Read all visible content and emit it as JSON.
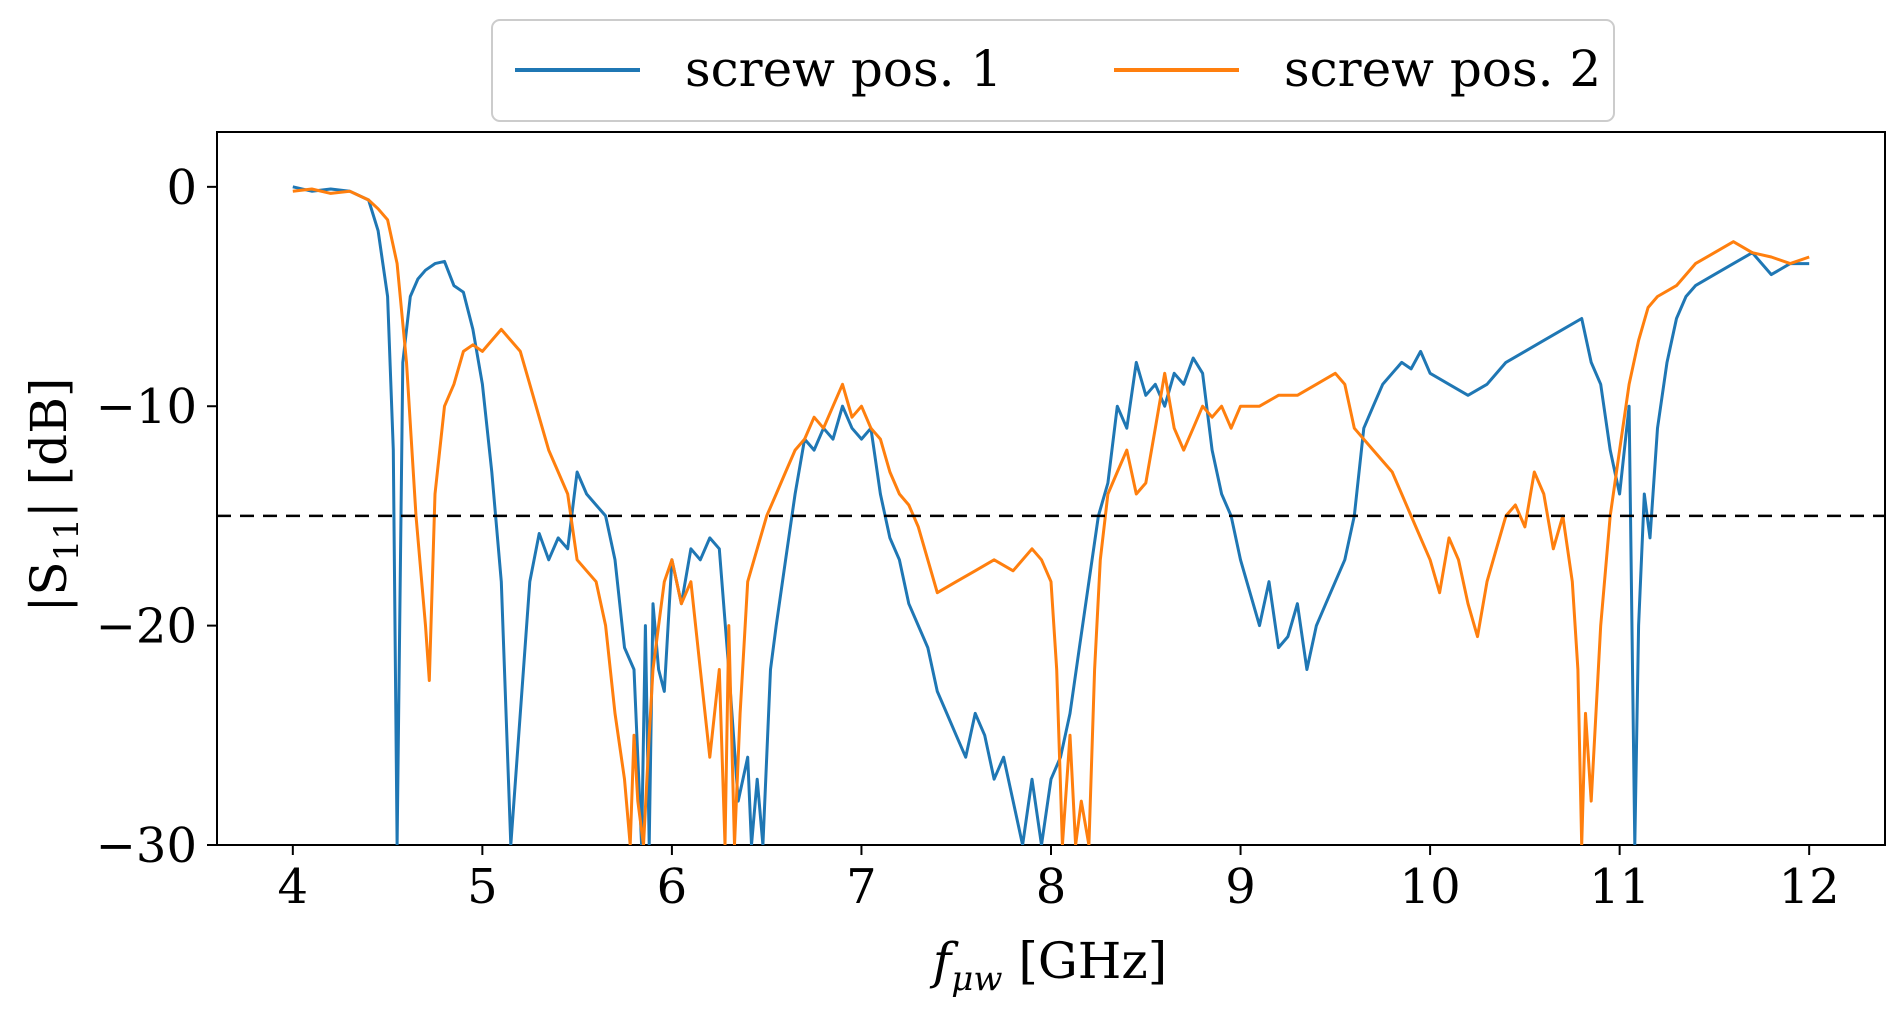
{
  "chart_data": {
    "type": "line",
    "xlabel": "f_{μw} [GHz]",
    "xlabel_main": "f",
    "xlabel_sub": "μw",
    "xlabel_unit": " [GHz]",
    "ylabel": "|S11| [dB]",
    "ylabel_main": "|S",
    "ylabel_sub": "11",
    "ylabel_unit": "| [dB]",
    "xlim": [
      3.6,
      12.4
    ],
    "ylim": [
      -30,
      2.5
    ],
    "xticks": [
      4,
      5,
      6,
      7,
      8,
      9,
      10,
      11,
      12
    ],
    "yticks": [
      0,
      -10,
      -20,
      -30
    ],
    "ytick_labels": [
      "0",
      "−10",
      "−20",
      "−30"
    ],
    "grid": false,
    "legend_position": "top-center-outside",
    "reference_line": {
      "y": -15,
      "style": "dashed",
      "color": "#000000"
    },
    "series": [
      {
        "name": "screw pos. 1",
        "color": "#1f77b4",
        "x": [
          4.0,
          4.1,
          4.2,
          4.3,
          4.4,
          4.45,
          4.5,
          4.53,
          4.55,
          4.58,
          4.62,
          4.66,
          4.7,
          4.75,
          4.8,
          4.85,
          4.9,
          4.95,
          5.0,
          5.05,
          5.1,
          5.15,
          5.2,
          5.25,
          5.3,
          5.35,
          5.4,
          5.45,
          5.5,
          5.55,
          5.6,
          5.65,
          5.7,
          5.75,
          5.8,
          5.84,
          5.86,
          5.88,
          5.9,
          5.93,
          5.96,
          6.0,
          6.05,
          6.1,
          6.15,
          6.2,
          6.25,
          6.3,
          6.35,
          6.4,
          6.42,
          6.45,
          6.48,
          6.52,
          6.55,
          6.6,
          6.65,
          6.7,
          6.75,
          6.8,
          6.85,
          6.9,
          6.95,
          7.0,
          7.05,
          7.1,
          7.15,
          7.2,
          7.25,
          7.3,
          7.35,
          7.4,
          7.45,
          7.5,
          7.55,
          7.6,
          7.65,
          7.7,
          7.75,
          7.8,
          7.85,
          7.9,
          7.95,
          8.0,
          8.05,
          8.1,
          8.15,
          8.2,
          8.25,
          8.3,
          8.35,
          8.4,
          8.45,
          8.5,
          8.55,
          8.6,
          8.65,
          8.7,
          8.75,
          8.8,
          8.85,
          8.9,
          8.95,
          9.0,
          9.05,
          9.1,
          9.15,
          9.2,
          9.25,
          9.3,
          9.35,
          9.4,
          9.45,
          9.5,
          9.55,
          9.6,
          9.65,
          9.7,
          9.75,
          9.8,
          9.85,
          9.9,
          9.95,
          10.0,
          10.1,
          10.2,
          10.3,
          10.4,
          10.5,
          10.6,
          10.7,
          10.8,
          10.85,
          10.9,
          10.95,
          11.0,
          11.05,
          11.08,
          11.1,
          11.13,
          11.16,
          11.2,
          11.25,
          11.3,
          11.35,
          11.4,
          11.5,
          11.6,
          11.7,
          11.8,
          11.9,
          12.0
        ],
        "values": [
          0.0,
          -0.2,
          -0.1,
          -0.2,
          -0.6,
          -2.0,
          -5.0,
          -12.0,
          -30.0,
          -8.0,
          -5.0,
          -4.2,
          -3.8,
          -3.5,
          -3.4,
          -4.5,
          -4.8,
          -6.5,
          -9.0,
          -13.0,
          -18.0,
          -30.0,
          -24.0,
          -18.0,
          -15.8,
          -17.0,
          -16.0,
          -16.5,
          -13.0,
          -14.0,
          -14.5,
          -15.0,
          -17.0,
          -21.0,
          -22.0,
          -30.0,
          -20.0,
          -30.0,
          -19.0,
          -22.0,
          -23.0,
          -17.0,
          -19.0,
          -16.5,
          -17.0,
          -16.0,
          -16.5,
          -22.0,
          -28.0,
          -26.0,
          -30.0,
          -27.0,
          -30.0,
          -22.0,
          -20.0,
          -17.0,
          -14.0,
          -11.5,
          -12.0,
          -11.0,
          -11.5,
          -10.0,
          -11.0,
          -11.5,
          -11.0,
          -14.0,
          -16.0,
          -17.0,
          -19.0,
          -20.0,
          -21.0,
          -23.0,
          -24.0,
          -25.0,
          -26.0,
          -24.0,
          -25.0,
          -27.0,
          -26.0,
          -28.0,
          -30.0,
          -27.0,
          -30.0,
          -27.0,
          -26.0,
          -24.0,
          -21.0,
          -18.0,
          -15.0,
          -13.5,
          -10.0,
          -11.0,
          -8.0,
          -9.5,
          -9.0,
          -10.0,
          -8.5,
          -9.0,
          -7.8,
          -8.5,
          -12.0,
          -14.0,
          -15.0,
          -17.0,
          -18.5,
          -20.0,
          -18.0,
          -21.0,
          -20.5,
          -19.0,
          -22.0,
          -20.0,
          -19.0,
          -18.0,
          -17.0,
          -15.0,
          -11.0,
          -10.0,
          -9.0,
          -8.5,
          -8.0,
          -8.3,
          -7.5,
          -8.5,
          -9.0,
          -9.5,
          -9.0,
          -8.0,
          -7.5,
          -7.0,
          -6.5,
          -6.0,
          -8.0,
          -9.0,
          -12.0,
          -14.0,
          -10.0,
          -30.0,
          -20.0,
          -14.0,
          -16.0,
          -11.0,
          -8.0,
          -6.0,
          -5.0,
          -4.5,
          -4.0,
          -3.5,
          -3.0,
          -4.0,
          -3.5,
          -3.5
        ]
      },
      {
        "name": "screw pos. 2",
        "color": "#ff7f0e",
        "x": [
          4.0,
          4.1,
          4.2,
          4.3,
          4.4,
          4.45,
          4.5,
          4.55,
          4.6,
          4.65,
          4.7,
          4.72,
          4.75,
          4.8,
          4.85,
          4.9,
          4.95,
          5.0,
          5.05,
          5.1,
          5.15,
          5.2,
          5.25,
          5.3,
          5.35,
          5.4,
          5.45,
          5.5,
          5.55,
          5.6,
          5.65,
          5.7,
          5.75,
          5.78,
          5.8,
          5.82,
          5.85,
          5.88,
          5.9,
          5.93,
          5.96,
          6.0,
          6.05,
          6.1,
          6.15,
          6.2,
          6.25,
          6.28,
          6.3,
          6.33,
          6.36,
          6.4,
          6.45,
          6.5,
          6.55,
          6.6,
          6.65,
          6.7,
          6.75,
          6.8,
          6.85,
          6.9,
          6.95,
          7.0,
          7.05,
          7.1,
          7.15,
          7.2,
          7.25,
          7.3,
          7.35,
          7.4,
          7.5,
          7.6,
          7.7,
          7.8,
          7.9,
          7.95,
          8.0,
          8.03,
          8.06,
          8.1,
          8.13,
          8.16,
          8.2,
          8.23,
          8.26,
          8.3,
          8.35,
          8.4,
          8.45,
          8.5,
          8.55,
          8.6,
          8.65,
          8.7,
          8.75,
          8.8,
          8.85,
          8.9,
          8.95,
          9.0,
          9.1,
          9.2,
          9.3,
          9.4,
          9.5,
          9.55,
          9.6,
          9.7,
          9.8,
          9.85,
          9.9,
          9.95,
          10.0,
          10.05,
          10.1,
          10.15,
          10.2,
          10.25,
          10.3,
          10.35,
          10.4,
          10.45,
          10.5,
          10.55,
          10.6,
          10.65,
          10.7,
          10.75,
          10.78,
          10.8,
          10.82,
          10.85,
          10.9,
          10.95,
          11.0,
          11.05,
          11.1,
          11.15,
          11.2,
          11.3,
          11.4,
          11.5,
          11.6,
          11.7,
          11.8,
          11.9,
          12.0
        ],
        "values": [
          -0.2,
          -0.1,
          -0.3,
          -0.2,
          -0.6,
          -1.0,
          -1.5,
          -3.5,
          -8.0,
          -15.0,
          -20.0,
          -22.5,
          -14.0,
          -10.0,
          -9.0,
          -7.5,
          -7.2,
          -7.5,
          -7.0,
          -6.5,
          -7.0,
          -7.5,
          -9.0,
          -10.5,
          -12.0,
          -13.0,
          -14.0,
          -17.0,
          -17.5,
          -18.0,
          -20.0,
          -24.0,
          -27.0,
          -30.0,
          -25.0,
          -28.0,
          -30.0,
          -25.0,
          -22.0,
          -20.0,
          -18.0,
          -17.0,
          -19.0,
          -18.0,
          -22.0,
          -26.0,
          -22.0,
          -30.0,
          -20.0,
          -30.0,
          -24.0,
          -18.0,
          -16.5,
          -15.0,
          -14.0,
          -13.0,
          -12.0,
          -11.5,
          -10.5,
          -11.0,
          -10.0,
          -9.0,
          -10.5,
          -10.0,
          -11.0,
          -11.5,
          -13.0,
          -14.0,
          -14.5,
          -15.5,
          -17.0,
          -18.5,
          -18.0,
          -17.5,
          -17.0,
          -17.5,
          -16.5,
          -17.0,
          -18.0,
          -22.0,
          -30.0,
          -25.0,
          -30.0,
          -28.0,
          -30.0,
          -22.0,
          -17.0,
          -14.0,
          -13.0,
          -12.0,
          -14.0,
          -13.5,
          -11.0,
          -8.5,
          -11.0,
          -12.0,
          -11.0,
          -10.0,
          -10.5,
          -10.0,
          -11.0,
          -10.0,
          -10.0,
          -9.5,
          -9.5,
          -9.0,
          -8.5,
          -9.0,
          -11.0,
          -12.0,
          -13.0,
          -14.0,
          -15.0,
          -16.0,
          -17.0,
          -18.5,
          -16.0,
          -17.0,
          -19.0,
          -20.5,
          -18.0,
          -16.5,
          -15.0,
          -14.5,
          -15.5,
          -13.0,
          -14.0,
          -16.5,
          -15.0,
          -18.0,
          -22.0,
          -30.0,
          -24.0,
          -28.0,
          -20.0,
          -15.0,
          -12.0,
          -9.0,
          -7.0,
          -5.5,
          -5.0,
          -4.5,
          -3.5,
          -3.0,
          -2.5,
          -3.0,
          -3.2,
          -3.5,
          -3.2
        ]
      }
    ]
  }
}
